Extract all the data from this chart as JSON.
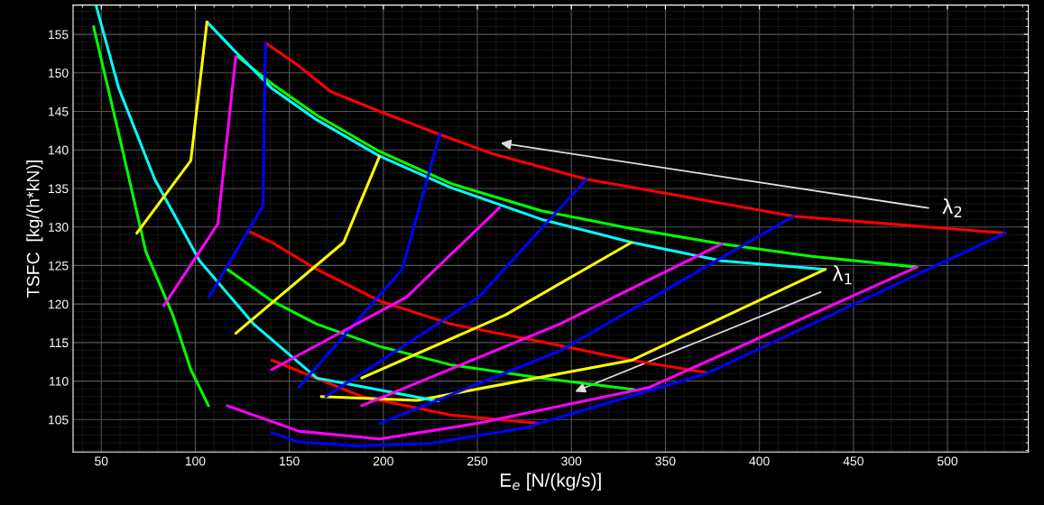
{
  "chart_data": {
    "type": "line",
    "xlabel": "E$_{e}$ [N/(kg/s)]",
    "ylabel": "TSFC  [kg/(h*kN)]",
    "xlim": [
      35,
      543
    ],
    "ylim": [
      100.8,
      158.8
    ],
    "xticks": [
      50,
      100,
      150,
      200,
      250,
      300,
      350,
      400,
      450,
      500
    ],
    "yticks": [
      105,
      110,
      115,
      120,
      125,
      130,
      135,
      140,
      145,
      150,
      155
    ],
    "grid": true,
    "legend": false,
    "marker": "none",
    "line_style": "solid",
    "annotations": [
      "λ$_{2}$",
      "λ$_{1}$"
    ],
    "series": [
      {
        "color": "#ff0000",
        "x": [
          137.3,
          155,
          171.8,
          198,
          229,
          258,
          308,
          360.8,
          418,
          530.6
        ],
        "values": [
          153.9,
          150.9,
          147.6,
          145,
          142.1,
          139.5,
          136.2,
          133.9,
          131.4,
          129.2
        ]
      },
      {
        "color": "#00ff00",
        "x": [
          122.5,
          140.7,
          164.6,
          198,
          236.4,
          284,
          332,
          380,
          427.8,
          483.7
        ],
        "values": [
          152.1,
          148.6,
          144.5,
          139.8,
          135.6,
          132.1,
          129.8,
          127.8,
          126.2,
          124.8
        ]
      },
      {
        "color": "#00ffff",
        "x": [
          106.2,
          121.5,
          140.7,
          164.6,
          198,
          236,
          284,
          332,
          380,
          435
        ],
        "values": [
          156.6,
          152.7,
          148,
          143.9,
          139.2,
          135.1,
          131,
          128,
          125.6,
          124.5
        ]
      },
      {
        "color": "#ff0000",
        "x": [
          128,
          140.7,
          164.6,
          198,
          236,
          284,
          332,
          372
        ],
        "values": [
          129.5,
          128,
          124.5,
          120.4,
          117.4,
          115.1,
          112.7,
          111.1
        ]
      },
      {
        "color": "#00ff00",
        "x": [
          117,
          140.7,
          164.6,
          198,
          236,
          284,
          333.5
        ],
        "values": [
          124.5,
          120.4,
          117.4,
          114.5,
          112.1,
          110.4,
          108.9
        ]
      },
      {
        "color": "#ff0000",
        "x": [
          140.7,
          188.5,
          236,
          283
        ],
        "values": [
          112.7,
          108,
          105.6,
          104.5
        ]
      },
      {
        "color": "#0000ff",
        "x": [
          140.7,
          155,
          186,
          224.4,
          274.6,
          372,
          530.6
        ],
        "values": [
          103.3,
          102.1,
          101.6,
          101.9,
          103.9,
          111,
          129.2
        ]
      },
      {
        "color": "#ff00ff",
        "x": [
          117,
          155,
          198,
          250,
          341.6,
          483.7
        ],
        "values": [
          106.8,
          103.5,
          102.5,
          104.5,
          109.2,
          124.8
        ]
      },
      {
        "color": "#ffff00",
        "x": [
          167,
          218,
          332,
          435
        ],
        "values": [
          108,
          107.5,
          112.7,
          124.5
        ]
      },
      {
        "color": "#00ff00",
        "x": [
          45.9,
          59.3,
          73.7,
          88,
          97.6,
          107
        ],
        "values": [
          156,
          142.1,
          126.8,
          118.6,
          111.5,
          106.8
        ]
      },
      {
        "color": "#00ffff",
        "x": [
          47.4,
          59.3,
          78.4,
          102.3,
          131,
          164.6,
          229
        ],
        "values": [
          158.6,
          148,
          136.2,
          125.6,
          117.4,
          110.4,
          107.4
        ]
      },
      {
        "color": "#0000ff",
        "x": [
          137.3,
          135.9,
          107.2
        ],
        "values": [
          153.9,
          132.7,
          120.9
        ]
      },
      {
        "color": "#0000ff",
        "x": [
          230,
          210,
          155
        ],
        "values": [
          142.1,
          124.5,
          109.2
        ]
      },
      {
        "color": "#0000ff",
        "x": [
          308,
          250.7,
          169.4
        ],
        "values": [
          136.2,
          120.9,
          108
        ]
      },
      {
        "color": "#0000ff",
        "x": [
          418.2,
          293.8,
          198
        ],
        "values": [
          131.4,
          113.9,
          104.5
        ]
      },
      {
        "color": "#ff00ff",
        "x": [
          121.5,
          112,
          83.3
        ],
        "values": [
          152.1,
          130.4,
          119.8
        ]
      },
      {
        "color": "#ff00ff",
        "x": [
          261.7,
          212.4,
          140.7
        ],
        "values": [
          132.5,
          120.9,
          111.5
        ]
      },
      {
        "color": "#ff00ff",
        "x": [
          380,
          293.8,
          188.5
        ],
        "values": [
          127.8,
          117.4,
          106.8
        ]
      },
      {
        "color": "#ffff00",
        "x": [
          106.2,
          97.6,
          68.9
        ],
        "values": [
          156.6,
          138.6,
          129.2
        ]
      },
      {
        "color": "#ffff00",
        "x": [
          198,
          178.9,
          121.5
        ],
        "values": [
          139.2,
          128,
          116.2
        ]
      },
      {
        "color": "#ffff00",
        "x": [
          332,
          265,
          188.5
        ],
        "values": [
          128,
          118.6,
          110.4
        ]
      }
    ]
  }
}
